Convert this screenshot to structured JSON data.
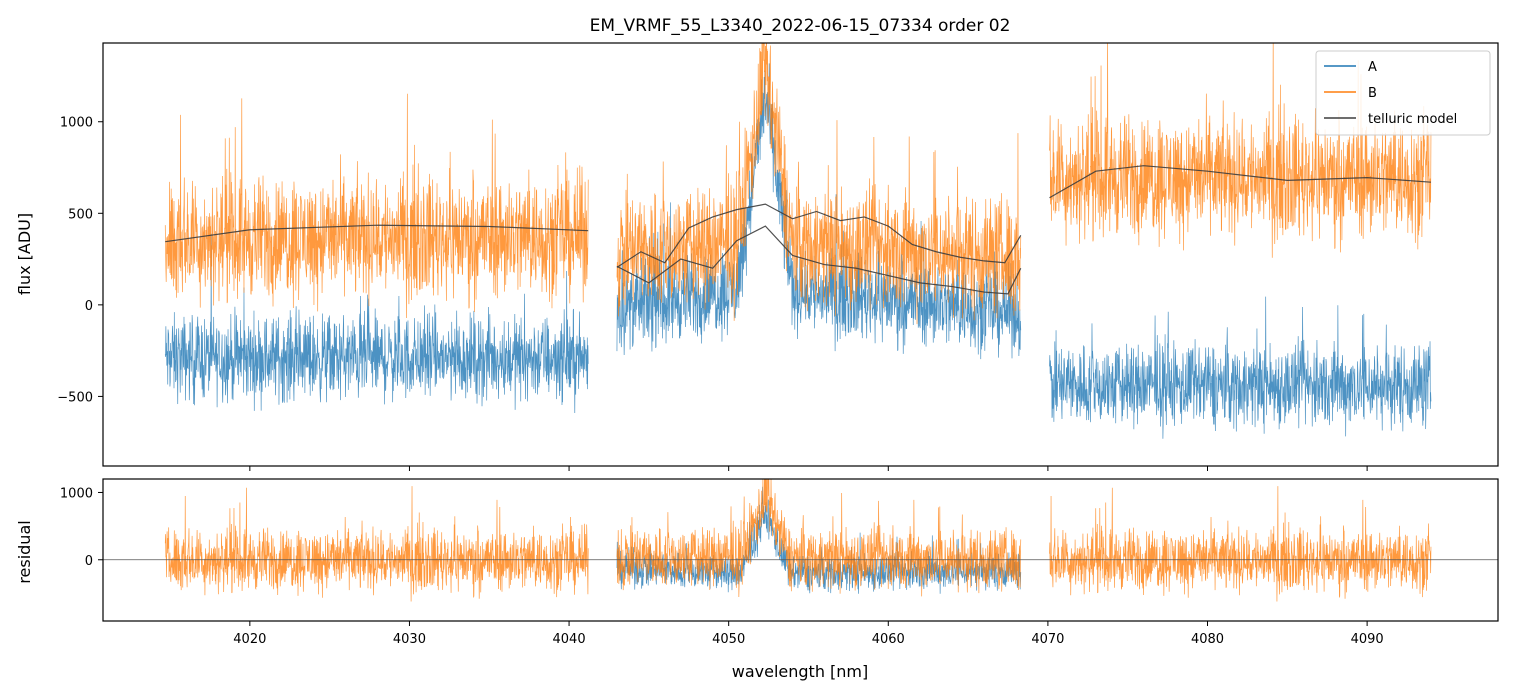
{
  "chart_data": {
    "type": "line",
    "title": "EM_VRMF_55_L3340_2022-06-15_07334  order 02",
    "xlabel": "wavelength [nm]",
    "x_range": [
      4010.8,
      4098.2
    ],
    "x_ticks": [
      4020,
      4030,
      4040,
      4050,
      4060,
      4070,
      4080,
      4090
    ],
    "x_tick_labels": [
      "4020",
      "4030",
      "4040",
      "4050",
      "4060",
      "4070",
      "4080",
      "4090"
    ],
    "segments": [
      [
        4014.7,
        4041.2
      ],
      [
        4043.0,
        4068.3
      ],
      [
        4070.1,
        4094.0
      ]
    ],
    "colors": {
      "A": "#1f77b4",
      "B": "#ff7f0e",
      "telluric": "#3d3d3d",
      "zero_line": "#555555"
    },
    "panels": [
      {
        "name": "flux",
        "ylabel": "flux [ADU]",
        "ylim": [
          -880,
          1430
        ],
        "y_ticks": [
          1000,
          500,
          0,
          -500
        ],
        "y_tick_labels": [
          "1000",
          "500",
          "0",
          "−500"
        ],
        "legend": {
          "position": "top-right",
          "entries": [
            "A",
            "B",
            "telluric model"
          ]
        },
        "series": [
          {
            "name": "A",
            "baseline_points": [
              [
                4014.7,
                -290
              ],
              [
                4041.2,
                -290
              ],
              [
                4043.0,
                -20
              ],
              [
                4050.5,
                80
              ],
              [
                4052.3,
                1150
              ],
              [
                4054.0,
                80
              ],
              [
                4068.3,
                -40
              ],
              [
                4070.1,
                -440
              ],
              [
                4094.0,
                -440
              ]
            ],
            "noise_amplitude": 140
          },
          {
            "name": "B",
            "baseline_points": [
              [
                4014.7,
                360
              ],
              [
                4041.2,
                380
              ],
              [
                4043.0,
                280
              ],
              [
                4050.5,
                330
              ],
              [
                4052.3,
                1300
              ],
              [
                4054.0,
                330
              ],
              [
                4068.3,
                260
              ],
              [
                4070.1,
                700
              ],
              [
                4094.0,
                700
              ]
            ],
            "noise_amplitude": 200
          },
          {
            "name": "telluric model",
            "line_1": [
              [
                4014.7,
                345
              ],
              [
                4020,
                410
              ],
              [
                4028,
                435
              ],
              [
                4035,
                428
              ],
              [
                4041.2,
                405
              ],
              [
                4043.0,
                205
              ],
              [
                4044.5,
                290
              ],
              [
                4046,
                230
              ],
              [
                4047.5,
                420
              ],
              [
                4049,
                480
              ],
              [
                4050.5,
                520
              ],
              [
                4052.3,
                550
              ],
              [
                4054,
                470
              ],
              [
                4055.5,
                510
              ],
              [
                4057,
                460
              ],
              [
                4058.5,
                480
              ],
              [
                4060,
                430
              ],
              [
                4061.5,
                330
              ],
              [
                4063,
                290
              ],
              [
                4064.5,
                260
              ],
              [
                4066,
                240
              ],
              [
                4067.3,
                230
              ],
              [
                4068.3,
                380
              ],
              [
                4070.1,
                585
              ],
              [
                4073,
                730
              ],
              [
                4076,
                760
              ],
              [
                4080,
                730
              ],
              [
                4085,
                680
              ],
              [
                4090,
                695
              ],
              [
                4094.0,
                670
              ]
            ],
            "line_2": [
              [
                4043.0,
                210
              ],
              [
                4045,
                120
              ],
              [
                4047,
                250
              ],
              [
                4049,
                200
              ],
              [
                4050.5,
                350
              ],
              [
                4052.3,
                430
              ],
              [
                4054,
                270
              ],
              [
                4056,
                220
              ],
              [
                4058,
                200
              ],
              [
                4060,
                160
              ],
              [
                4062,
                120
              ],
              [
                4064,
                100
              ],
              [
                4066,
                70
              ],
              [
                4067.5,
                60
              ],
              [
                4068.3,
                200
              ]
            ]
          }
        ]
      },
      {
        "name": "residual",
        "ylabel": "residual",
        "ylim": [
          -910,
          1200
        ],
        "y_ticks": [
          1000,
          0
        ],
        "y_tick_labels": [
          "1000",
          "0"
        ],
        "zero_line": 0,
        "series": [
          {
            "name": "A",
            "baseline_points": [
              [
                4043.0,
                -120
              ],
              [
                4050.8,
                -200
              ],
              [
                4052.3,
                700
              ],
              [
                4053.8,
                -200
              ],
              [
                4068.3,
                -150
              ]
            ],
            "noise_amplitude": 170
          },
          {
            "name": "B",
            "baseline_points": [
              [
                4014.7,
                0
              ],
              [
                4041.2,
                0
              ],
              [
                4043.0,
                30
              ],
              [
                4050.8,
                30
              ],
              [
                4052.3,
                950
              ],
              [
                4053.8,
                30
              ],
              [
                4068.3,
                0
              ],
              [
                4070.1,
                0
              ],
              [
                4094.0,
                0
              ]
            ],
            "noise_amplitude": 280
          }
        ]
      }
    ]
  }
}
